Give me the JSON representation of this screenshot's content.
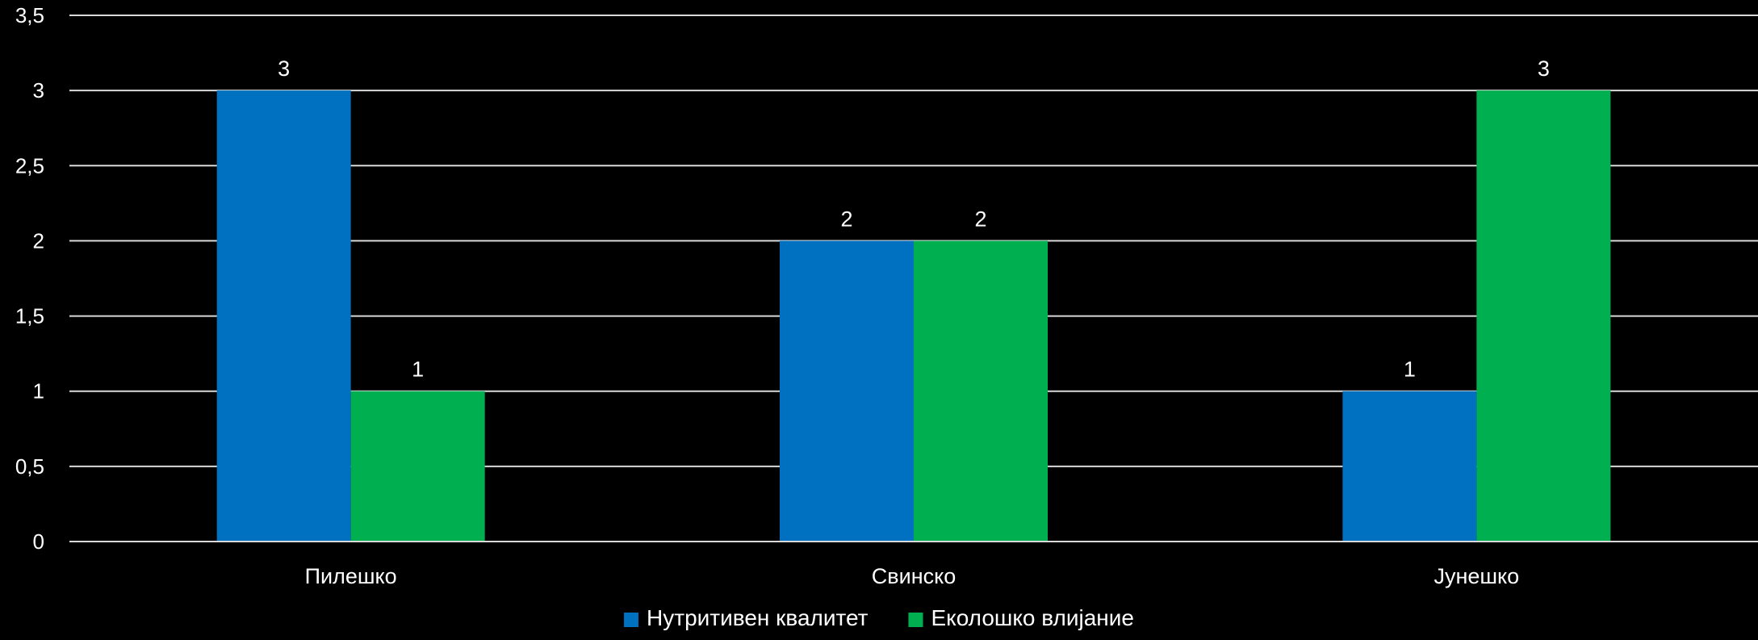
{
  "chart_data": {
    "type": "bar",
    "categories": [
      "Пилешко",
      "Свинско",
      "Јунешко"
    ],
    "series": [
      {
        "name": "Нутритивен квалитет",
        "values": [
          3,
          2,
          1
        ],
        "color": "#0070c0"
      },
      {
        "name": "Еколошко влијание",
        "values": [
          1,
          2,
          3
        ],
        "color": "#00b050"
      }
    ],
    "ylim": [
      0,
      3.5
    ],
    "yticks": [
      0,
      0.5,
      1,
      1.5,
      2,
      2.5,
      3,
      3.5
    ],
    "ytick_labels": [
      "0",
      "0,5",
      "1",
      "1,5",
      "2",
      "2,5",
      "3",
      "3,5"
    ],
    "grid": true,
    "legend": "bottom-center",
    "title": "",
    "xlabel": "",
    "ylabel": ""
  }
}
